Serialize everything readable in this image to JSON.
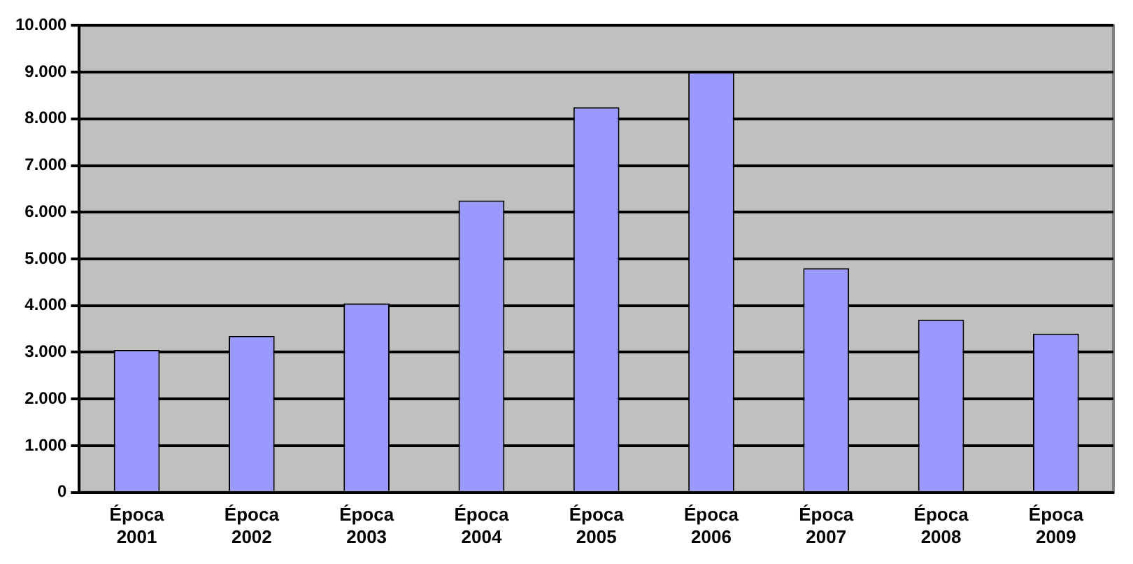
{
  "chart_data": {
    "type": "bar",
    "categories": [
      "Época 2001",
      "Época 2002",
      "Época 2003",
      "Época 2004",
      "Época 2005",
      "Época 2006",
      "Época 2007",
      "Época 2008",
      "Época 2009"
    ],
    "values": [
      3050,
      3350,
      4050,
      6250,
      8250,
      9000,
      4800,
      3700,
      3400
    ],
    "color": "#9999ff",
    "ylim": [
      0,
      10000
    ],
    "yticks": [
      {
        "value": 0,
        "label": "0"
      },
      {
        "value": 1000,
        "label": "1.000"
      },
      {
        "value": 2000,
        "label": "2.000"
      },
      {
        "value": 3000,
        "label": "3.000"
      },
      {
        "value": 4000,
        "label": "4.000"
      },
      {
        "value": 5000,
        "label": "5.000"
      },
      {
        "value": 6000,
        "label": "6.000"
      },
      {
        "value": 7000,
        "label": "7.000"
      },
      {
        "value": 8000,
        "label": "8.000"
      },
      {
        "value": 9000,
        "label": "9.000"
      },
      {
        "value": 10000,
        "label": "10.000"
      }
    ],
    "grid": "y",
    "legend": false
  }
}
